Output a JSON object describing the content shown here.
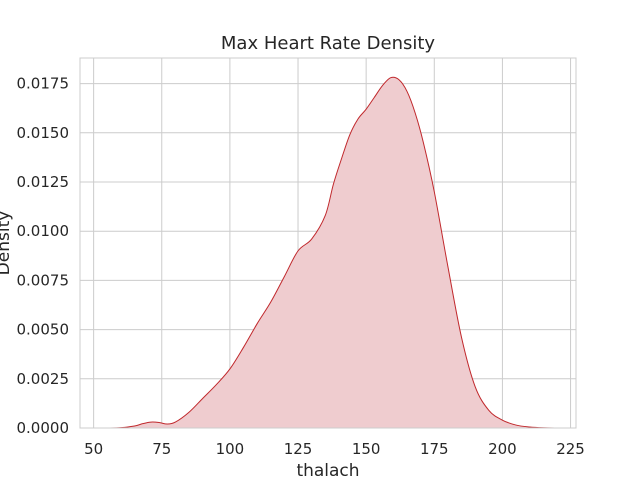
{
  "chart_data": {
    "type": "area",
    "title": "Max Heart Rate Density",
    "xlabel": "thalach",
    "ylabel": "Density",
    "xlim": [
      45,
      227
    ],
    "ylim": [
      0,
      0.0188
    ],
    "grid": true,
    "x_ticks": [
      "50",
      "75",
      "100",
      "125",
      "150",
      "175",
      "200",
      "225"
    ],
    "y_ticks": [
      "0.0000",
      "0.0025",
      "0.0050",
      "0.0075",
      "0.0100",
      "0.0125",
      "0.0150",
      "0.0175"
    ],
    "line_color": "#c0282c",
    "fill_color": "#efcccf",
    "series": [
      {
        "x": [
          55,
          60,
          65,
          68,
          71,
          74,
          77,
          80,
          85,
          90,
          95,
          100,
          105,
          110,
          115,
          120,
          125,
          130,
          135,
          138,
          141,
          144,
          147,
          150,
          153,
          156,
          159,
          162,
          165,
          168,
          171,
          175,
          180,
          185,
          190,
          195,
          200,
          205,
          210,
          215,
          220
        ],
        "y": [
          0.0,
          2e-05,
          0.0001,
          0.00022,
          0.0003,
          0.00028,
          0.0002,
          0.0003,
          0.0008,
          0.0015,
          0.0022,
          0.003,
          0.0041,
          0.0053,
          0.0064,
          0.0077,
          0.009,
          0.0096,
          0.0108,
          0.0124,
          0.0137,
          0.0149,
          0.0157,
          0.0162,
          0.0168,
          0.0174,
          0.0178,
          0.0177,
          0.0171,
          0.016,
          0.0145,
          0.012,
          0.0082,
          0.0046,
          0.0021,
          0.0009,
          0.0004,
          0.00015,
          5e-05,
          1e-05,
          0.0
        ]
      }
    ]
  }
}
